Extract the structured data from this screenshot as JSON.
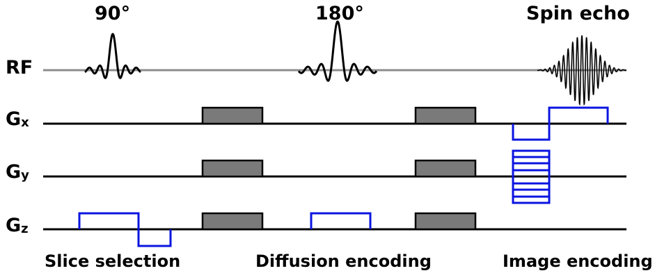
{
  "pulses": {
    "p90": "90°",
    "p180": "180°",
    "echo": "Spin echo"
  },
  "axes": {
    "rf": "RF",
    "gx_main": "G",
    "gx_sub": "x",
    "gy_main": "G",
    "gy_sub": "y",
    "gz_main": "G",
    "gz_sub": "z"
  },
  "sections": {
    "slice": "Slice selection",
    "diffusion": "Diffusion encoding",
    "image": "Image encoding"
  },
  "colors": {
    "rf_baseline": "#8c8c8c",
    "gradient_axis": "#000000",
    "diffusion_block": "#7a7a7a",
    "encoding": "#0a14e0"
  }
}
